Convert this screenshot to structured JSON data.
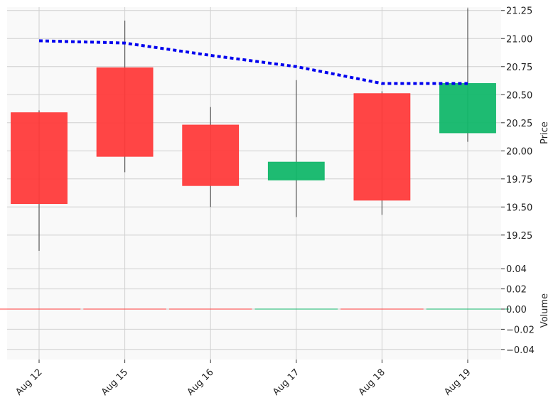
{
  "chart_data": {
    "type": "candlestick",
    "categories": [
      "Aug 12",
      "Aug 15",
      "Aug 16",
      "Aug 17",
      "Aug 18",
      "Aug 19"
    ],
    "ohlc": [
      {
        "open": 20.34,
        "high": 20.36,
        "low": 19.11,
        "close": 19.53
      },
      {
        "open": 20.74,
        "high": 21.16,
        "low": 19.81,
        "close": 19.95
      },
      {
        "open": 20.23,
        "high": 20.39,
        "low": 19.5,
        "close": 19.69
      },
      {
        "open": 19.74,
        "high": 20.63,
        "low": 19.41,
        "close": 19.9
      },
      {
        "open": 20.51,
        "high": 20.53,
        "low": 19.43,
        "close": 19.56
      },
      {
        "open": 20.16,
        "high": 21.27,
        "low": 20.08,
        "close": 20.6
      }
    ],
    "moving_average": [
      20.98,
      20.96,
      20.85,
      20.75,
      20.6,
      20.6
    ],
    "volume": [
      0,
      0,
      0,
      0,
      0,
      0
    ],
    "price_axis": {
      "label": "Price",
      "ylim": [
        19.04,
        21.28
      ],
      "ticks": [
        "19.25",
        "19.50",
        "19.75",
        "20.00",
        "20.25",
        "20.50",
        "20.75",
        "21.00",
        "21.25"
      ]
    },
    "volume_axis": {
      "label": "Volume",
      "ylim": [
        -0.05,
        0.05
      ],
      "ticks": [
        "−0.04",
        "−0.02",
        "0.00",
        "0.02",
        "0.04"
      ]
    },
    "grid": true,
    "colors": {
      "up": "#12b76a",
      "down": "#ff3b3b",
      "moving_average": "#0000ee",
      "wick": "#555555",
      "panel_bg": "#f9f9f9",
      "grid": "#d0d0d0"
    }
  }
}
